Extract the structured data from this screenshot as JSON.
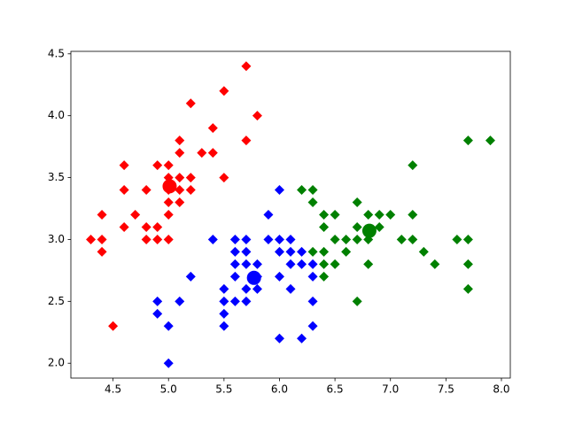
{
  "chart_data": {
    "type": "scatter",
    "xlim": [
      4.12,
      8.08
    ],
    "ylim": [
      1.88,
      4.52
    ],
    "xticks": [
      4.5,
      {
        "value": 5,
        "label": "5.0"
      },
      5.5,
      {
        "value": 6,
        "label": "6.0"
      },
      6.5,
      {
        "value": 7,
        "label": "7.0"
      },
      7.5,
      {
        "value": 8,
        "label": "8.0"
      }
    ],
    "yticks": [
      {
        "value": 2,
        "label": "2.0"
      },
      2.5,
      {
        "value": 3,
        "label": "3.0"
      },
      3.5,
      {
        "value": 4,
        "label": "4.0"
      },
      4.5
    ],
    "series": [
      {
        "color": "#ff0000",
        "marker": "diamond",
        "x": [
          5.1,
          4.9,
          4.7,
          4.6,
          5.0,
          5.4,
          4.6,
          5.0,
          4.4,
          4.9,
          5.4,
          4.8,
          4.8,
          4.3,
          5.8,
          5.7,
          5.7,
          5.1,
          5.1,
          4.6,
          5.1,
          5.0,
          5.2,
          5.2,
          4.8,
          5.2,
          5.5,
          5.0,
          5.5,
          4.9,
          4.4,
          5.1,
          4.5,
          4.4,
          5.3,
          5.0,
          5.0
        ],
        "y": [
          3.5,
          3.0,
          3.2,
          3.1,
          3.6,
          3.9,
          3.4,
          3.4,
          2.9,
          3.1,
          3.7,
          3.4,
          3.0,
          3.0,
          4.0,
          4.4,
          3.8,
          3.8,
          3.7,
          3.6,
          3.3,
          3.0,
          3.5,
          3.4,
          3.1,
          4.1,
          4.2,
          3.2,
          3.5,
          3.6,
          3.0,
          3.4,
          2.3,
          3.2,
          3.7,
          3.3,
          3.5
        ]
      },
      {
        "color": "#0000ff",
        "marker": "diamond",
        "x": [
          5.0,
          4.9,
          4.9,
          5.0,
          5.1,
          5.2,
          5.4,
          5.5,
          5.5,
          5.5,
          5.5,
          5.6,
          5.6,
          5.6,
          5.6,
          5.6,
          5.7,
          5.7,
          5.7,
          5.7,
          5.7,
          5.8,
          5.8,
          5.8,
          5.9,
          5.9,
          6.0,
          6.0,
          6.0,
          6.0,
          6.0,
          6.1,
          6.1,
          6.1,
          6.1,
          6.2,
          6.2,
          6.2,
          6.3,
          6.3,
          6.3,
          6.3
        ],
        "y": [
          2.0,
          2.5,
          2.4,
          2.3,
          2.5,
          2.7,
          3.0,
          2.6,
          2.5,
          2.4,
          2.3,
          3.0,
          2.9,
          2.8,
          2.7,
          2.5,
          3.0,
          2.9,
          2.8,
          2.6,
          2.5,
          2.8,
          2.7,
          2.6,
          3.2,
          3.0,
          3.4,
          3.0,
          2.9,
          2.7,
          2.2,
          3.0,
          2.9,
          2.8,
          2.6,
          2.9,
          2.8,
          2.2,
          2.8,
          2.7,
          2.5,
          2.3
        ]
      },
      {
        "color": "#008000",
        "marker": "diamond",
        "x": [
          6.2,
          6.3,
          6.3,
          6.3,
          6.4,
          6.4,
          6.4,
          6.4,
          6.4,
          6.5,
          6.5,
          6.5,
          6.6,
          6.6,
          6.7,
          6.7,
          6.7,
          6.7,
          6.8,
          6.8,
          6.8,
          6.9,
          6.9,
          7.0,
          7.1,
          7.2,
          7.2,
          7.2,
          7.3,
          7.4,
          7.6,
          7.7,
          7.7,
          7.7,
          7.7,
          7.9
        ],
        "y": [
          3.4,
          3.4,
          3.3,
          2.9,
          3.2,
          3.1,
          2.9,
          2.8,
          2.7,
          3.2,
          3.0,
          2.8,
          3.0,
          2.9,
          3.3,
          3.1,
          3.0,
          2.5,
          3.2,
          3.0,
          2.8,
          3.2,
          3.1,
          3.2,
          3.0,
          3.6,
          3.2,
          3.0,
          2.9,
          2.8,
          3.0,
          3.8,
          3.0,
          2.8,
          2.6,
          3.8
        ]
      },
      {
        "color": "#ff0000",
        "marker": "circle",
        "x": [
          5.01
        ],
        "y": [
          3.43
        ]
      },
      {
        "color": "#0000ff",
        "marker": "circle",
        "x": [
          5.77
        ],
        "y": [
          2.69
        ]
      },
      {
        "color": "#008000",
        "marker": "circle",
        "x": [
          6.81
        ],
        "y": [
          3.07
        ]
      }
    ]
  }
}
